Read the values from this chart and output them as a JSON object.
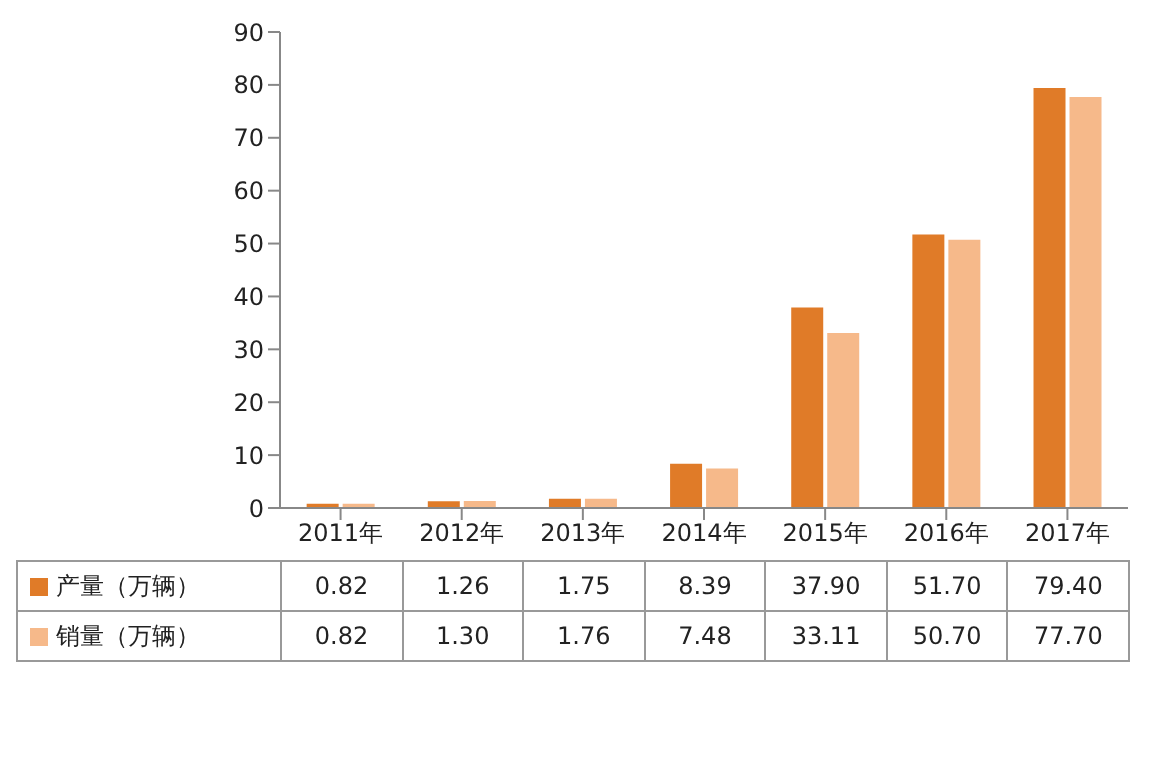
{
  "chart_data": {
    "type": "bar",
    "categories": [
      "2011年",
      "2012年",
      "2013年",
      "2014年",
      "2015年",
      "2016年",
      "2017年"
    ],
    "series": [
      {
        "name": "产量（万辆）",
        "color": "#e07b28",
        "values": [
          0.82,
          1.26,
          1.75,
          8.39,
          37.9,
          51.7,
          79.4
        ],
        "value_labels": [
          "0.82",
          "1.26",
          "1.75",
          "8.39",
          "37.90",
          "51.70",
          "79.40"
        ]
      },
      {
        "name": "销量（万辆）",
        "color": "#f6b98a",
        "values": [
          0.82,
          1.3,
          1.76,
          7.48,
          33.11,
          50.7,
          77.7
        ],
        "value_labels": [
          "0.82",
          "1.30",
          "1.76",
          "7.48",
          "33.11",
          "50.70",
          "77.70"
        ]
      }
    ],
    "ylim": [
      0,
      90
    ],
    "yticks": [
      0,
      10,
      20,
      30,
      40,
      50,
      60,
      70,
      80,
      90
    ],
    "grid": false,
    "legend": "bottom left"
  }
}
